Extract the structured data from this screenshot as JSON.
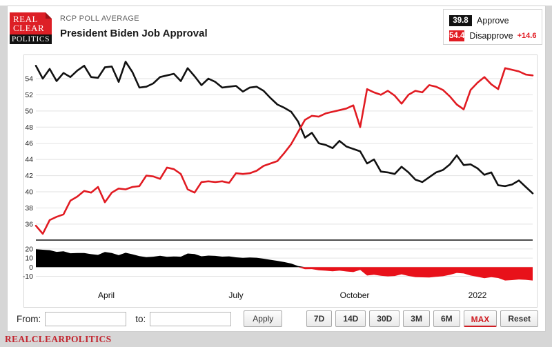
{
  "header": {
    "logo_line1": "REAL",
    "logo_line2": "CLEAR",
    "logo_line3": "POLITICS",
    "kicker": "RCP POLL AVERAGE",
    "title": "President Biden Job Approval"
  },
  "legend": {
    "approve_value": "39.8",
    "approve_label": "Approve",
    "disapprove_value": "54.4",
    "disapprove_label": "Disapprove",
    "spread_value": "+14.6"
  },
  "controls": {
    "from_label": "From:",
    "from_value": "",
    "to_label": "to:",
    "to_value": "",
    "apply_label": "Apply",
    "ranges": [
      "7D",
      "14D",
      "30D",
      "3M",
      "6M",
      "MAX",
      "Reset"
    ],
    "active_range": "MAX"
  },
  "footer": {
    "brand": "REALCLEARPOLITICS"
  },
  "colors": {
    "approve": "#111111",
    "disapprove": "#e11b22",
    "grid": "#e2e2e2",
    "axis": "#333333"
  },
  "chart_data": {
    "type": "line",
    "title": "President Biden Job Approval",
    "ylim": [
      34,
      56.3
    ],
    "y_ticks": [
      54,
      52,
      50,
      48,
      46,
      44,
      42,
      40,
      38,
      36
    ],
    "x_ticks": [
      {
        "label": "April",
        "pos": 0.1417
      },
      {
        "label": "July",
        "pos": 0.4028
      },
      {
        "label": "October",
        "pos": 0.6417
      },
      {
        "label": "2022",
        "pos": 0.8889
      }
    ],
    "grid": true,
    "legend_position": "top-right",
    "series": [
      {
        "name": "Approve",
        "color": "#111111",
        "end_value": 39.8,
        "values": [
          55.6,
          54.0,
          55.2,
          53.7,
          54.7,
          54.2,
          55.0,
          55.6,
          54.2,
          54.1,
          55.4,
          55.5,
          53.6,
          56.1,
          54.8,
          52.9,
          53.0,
          53.4,
          54.2,
          54.4,
          54.6,
          53.7,
          55.3,
          54.3,
          53.2,
          54.0,
          53.6,
          52.9,
          53.0,
          53.1,
          52.4,
          52.9,
          53.0,
          52.5,
          51.6,
          50.8,
          50.4,
          49.9,
          48.7,
          46.7,
          47.3,
          46.0,
          45.8,
          45.4,
          46.3,
          45.6,
          45.3,
          45.0,
          43.5,
          44.0,
          42.5,
          42.4,
          42.2,
          43.1,
          42.4,
          41.5,
          41.2,
          41.8,
          42.4,
          42.7,
          43.4,
          44.5,
          43.3,
          43.4,
          42.9,
          42.1,
          42.4,
          40.8,
          40.7,
          40.9,
          41.4,
          40.6,
          39.8
        ]
      },
      {
        "name": "Disapprove",
        "color": "#e11b22",
        "end_value": 54.4,
        "values": [
          35.8,
          34.8,
          36.5,
          36.9,
          37.2,
          38.9,
          39.4,
          40.1,
          39.9,
          40.6,
          38.7,
          39.9,
          40.4,
          40.3,
          40.6,
          40.7,
          42.0,
          41.9,
          41.6,
          43.0,
          42.8,
          42.2,
          40.3,
          39.9,
          41.2,
          41.3,
          41.2,
          41.3,
          41.1,
          42.3,
          42.2,
          42.3,
          42.6,
          43.2,
          43.5,
          43.8,
          44.8,
          45.9,
          47.4,
          48.9,
          49.4,
          49.3,
          49.7,
          49.9,
          50.1,
          50.3,
          50.7,
          48.0,
          52.7,
          52.3,
          52.0,
          52.5,
          51.9,
          50.9,
          52.0,
          52.5,
          52.3,
          53.2,
          53.0,
          52.6,
          51.8,
          50.8,
          50.2,
          52.6,
          53.5,
          54.2,
          53.3,
          52.7,
          55.3,
          55.1,
          54.9,
          54.5,
          54.4
        ]
      }
    ],
    "spread_panel": {
      "type": "area",
      "derived": "Approve minus Disapprove",
      "y_ticks": [
        20,
        10,
        0,
        -10
      ],
      "ylim": [
        -21,
        25
      ],
      "positive_color": "#000000",
      "negative_color": "#e8111a",
      "end_spread": -14.6
    }
  }
}
